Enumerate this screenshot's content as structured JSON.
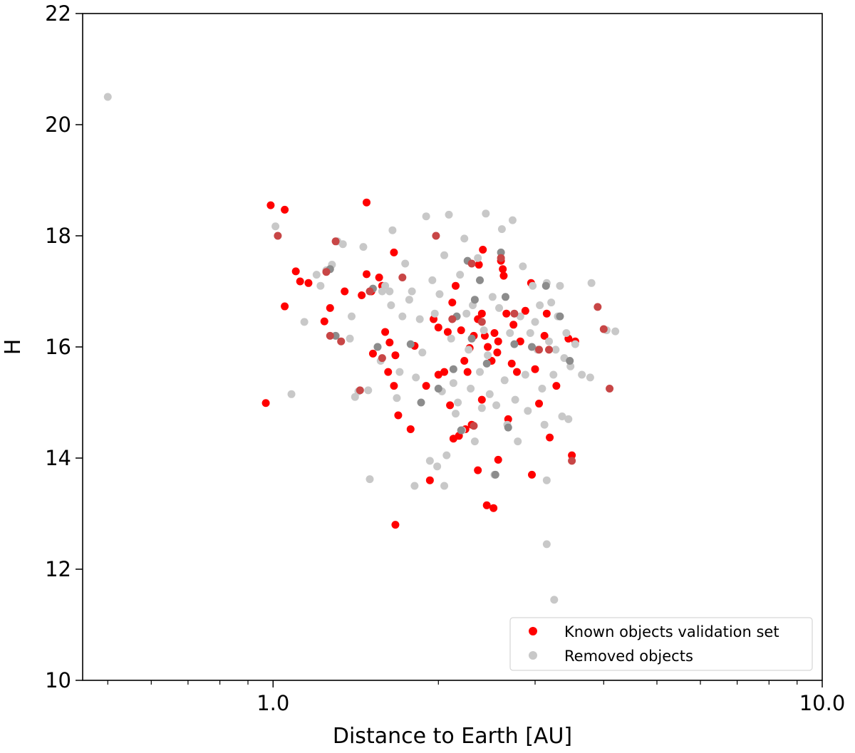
{
  "chart_data": {
    "type": "scatter",
    "title": "",
    "xlabel": "Distance to Earth [AU]",
    "ylabel": "H",
    "xscale": "log",
    "xlim": [
      0.45,
      10.0
    ],
    "ylim": [
      10,
      22
    ],
    "x_major_ticks": [
      {
        "value": 1.0,
        "label": "1.0"
      },
      {
        "value": 10.0,
        "label": "10.0"
      }
    ],
    "x_minor_ticks": [
      0.5,
      0.6,
      0.7,
      0.8,
      0.9,
      2,
      3,
      4,
      5,
      6,
      7,
      8,
      9
    ],
    "y_ticks": [
      {
        "value": 10,
        "label": "10"
      },
      {
        "value": 12,
        "label": "12"
      },
      {
        "value": 14,
        "label": "14"
      },
      {
        "value": 16,
        "label": "16"
      },
      {
        "value": 18,
        "label": "18"
      },
      {
        "value": 20,
        "label": "20"
      },
      {
        "value": 22,
        "label": "22"
      }
    ],
    "grid": false,
    "legend": {
      "placement": "lower-right",
      "entries": [
        {
          "label": "Known objects validation set",
          "color": "#ff0000"
        },
        {
          "label": "Removed objects",
          "color": "#c8c8c8"
        }
      ]
    },
    "series": [
      {
        "name": "Known objects validation set",
        "color": "#ff0000",
        "points": [
          [
            0.99,
            18.55
          ],
          [
            1.05,
            18.47
          ],
          [
            1.48,
            18.6
          ],
          [
            1.05,
            16.73
          ],
          [
            1.1,
            17.36
          ],
          [
            1.12,
            17.18
          ],
          [
            1.16,
            17.15
          ],
          [
            1.24,
            16.46
          ],
          [
            1.27,
            16.7
          ],
          [
            1.35,
            17.0
          ],
          [
            1.45,
            16.93
          ],
          [
            1.48,
            17.31
          ],
          [
            1.51,
            17.0
          ],
          [
            1.56,
            17.25
          ],
          [
            1.58,
            17.1
          ],
          [
            1.66,
            17.7
          ],
          [
            1.6,
            16.27
          ],
          [
            1.63,
            16.08
          ],
          [
            1.67,
            15.85
          ],
          [
            1.62,
            15.55
          ],
          [
            1.66,
            15.3
          ],
          [
            1.69,
            14.77
          ],
          [
            0.97,
            14.99
          ],
          [
            1.78,
            14.52
          ],
          [
            1.67,
            12.8
          ],
          [
            1.52,
            15.88
          ],
          [
            1.81,
            16.02
          ],
          [
            1.9,
            15.3
          ],
          [
            1.96,
            16.5
          ],
          [
            2.0,
            16.35
          ],
          [
            2.05,
            15.55
          ],
          [
            2.08,
            16.27
          ],
          [
            2.12,
            16.8
          ],
          [
            2.15,
            17.1
          ],
          [
            2.2,
            16.3
          ],
          [
            2.23,
            15.75
          ],
          [
            2.26,
            15.55
          ],
          [
            2.32,
            16.2
          ],
          [
            2.36,
            16.5
          ],
          [
            2.4,
            16.6
          ],
          [
            2.43,
            16.2
          ],
          [
            2.46,
            16.0
          ],
          [
            2.5,
            15.75
          ],
          [
            2.53,
            16.25
          ],
          [
            2.57,
            16.1
          ],
          [
            2.6,
            17.55
          ],
          [
            2.63,
            17.28
          ],
          [
            2.66,
            16.6
          ],
          [
            2.72,
            15.7
          ],
          [
            2.78,
            15.55
          ],
          [
            2.82,
            16.1
          ],
          [
            2.88,
            16.65
          ],
          [
            2.95,
            17.15
          ],
          [
            3.0,
            15.6
          ],
          [
            3.05,
            14.98
          ],
          [
            3.12,
            16.2
          ],
          [
            3.15,
            16.6
          ],
          [
            3.19,
            14.37
          ],
          [
            3.28,
            15.3
          ],
          [
            3.45,
            16.15
          ],
          [
            3.55,
            16.1
          ],
          [
            3.5,
            14.05
          ],
          [
            2.45,
            13.15
          ],
          [
            2.52,
            13.1
          ],
          [
            2.36,
            13.78
          ],
          [
            2.57,
            13.97
          ],
          [
            2.18,
            14.4
          ],
          [
            2.24,
            14.52
          ],
          [
            2.3,
            14.6
          ],
          [
            2.4,
            15.05
          ],
          [
            2.68,
            14.7
          ],
          [
            2.96,
            13.7
          ],
          [
            1.93,
            13.6
          ],
          [
            2.13,
            14.35
          ],
          [
            2.1,
            14.95
          ],
          [
            2.0,
            15.5
          ],
          [
            2.28,
            15.98
          ],
          [
            2.41,
            17.75
          ],
          [
            2.37,
            17.48
          ],
          [
            2.62,
            17.4
          ],
          [
            2.74,
            16.4
          ],
          [
            2.56,
            15.9
          ]
        ]
      },
      {
        "name": "Removed objects",
        "color": "#c8c8c8",
        "points": [
          [
            0.5,
            20.5
          ],
          [
            1.01,
            18.17
          ],
          [
            1.02,
            18.0
          ],
          [
            1.14,
            16.45
          ],
          [
            1.08,
            15.15
          ],
          [
            1.2,
            17.3
          ],
          [
            1.22,
            17.1
          ],
          [
            1.25,
            17.38
          ],
          [
            1.28,
            17.48
          ],
          [
            1.31,
            17.9
          ],
          [
            1.34,
            17.85
          ],
          [
            1.38,
            16.15
          ],
          [
            1.39,
            16.55
          ],
          [
            1.41,
            15.1
          ],
          [
            1.43,
            15.2
          ],
          [
            1.46,
            17.8
          ],
          [
            1.5,
            13.62
          ],
          [
            1.49,
            15.22
          ],
          [
            1.55,
            16.0
          ],
          [
            1.57,
            15.75
          ],
          [
            1.6,
            17.1
          ],
          [
            1.63,
            17.0
          ],
          [
            1.65,
            18.1
          ],
          [
            1.68,
            15.08
          ],
          [
            1.7,
            15.55
          ],
          [
            1.72,
            16.55
          ],
          [
            1.74,
            17.5
          ],
          [
            1.77,
            16.85
          ],
          [
            1.79,
            17.0
          ],
          [
            1.82,
            15.45
          ],
          [
            1.85,
            16.5
          ],
          [
            1.87,
            15.9
          ],
          [
            1.9,
            18.35
          ],
          [
            1.93,
            13.95
          ],
          [
            1.95,
            17.2
          ],
          [
            1.97,
            16.6
          ],
          [
            1.99,
            13.85
          ],
          [
            2.01,
            16.95
          ],
          [
            2.03,
            15.2
          ],
          [
            2.05,
            13.5
          ],
          [
            2.07,
            14.05
          ],
          [
            2.09,
            18.38
          ],
          [
            2.11,
            16.15
          ],
          [
            2.13,
            15.35
          ],
          [
            2.15,
            14.8
          ],
          [
            2.17,
            15.0
          ],
          [
            2.19,
            17.3
          ],
          [
            2.21,
            14.5
          ],
          [
            2.23,
            17.95
          ],
          [
            2.25,
            16.6
          ],
          [
            2.27,
            15.95
          ],
          [
            2.29,
            15.25
          ],
          [
            2.31,
            16.75
          ],
          [
            2.33,
            14.3
          ],
          [
            2.36,
            17.6
          ],
          [
            2.38,
            15.55
          ],
          [
            2.4,
            14.9
          ],
          [
            2.42,
            16.3
          ],
          [
            2.44,
            18.4
          ],
          [
            2.46,
            15.85
          ],
          [
            2.48,
            15.15
          ],
          [
            2.51,
            16.9
          ],
          [
            2.53,
            13.7
          ],
          [
            2.55,
            14.95
          ],
          [
            2.58,
            16.7
          ],
          [
            2.61,
            18.12
          ],
          [
            2.64,
            15.4
          ],
          [
            2.67,
            14.6
          ],
          [
            2.7,
            16.25
          ],
          [
            2.73,
            18.28
          ],
          [
            2.76,
            15.05
          ],
          [
            2.79,
            14.3
          ],
          [
            2.82,
            16.55
          ],
          [
            2.85,
            17.45
          ],
          [
            2.88,
            15.5
          ],
          [
            2.91,
            14.85
          ],
          [
            2.94,
            16.25
          ],
          [
            2.97,
            17.1
          ],
          [
            3.0,
            16.45
          ],
          [
            3.03,
            15.95
          ],
          [
            3.06,
            16.75
          ],
          [
            3.09,
            15.25
          ],
          [
            3.12,
            14.6
          ],
          [
            3.15,
            17.15
          ],
          [
            3.18,
            16.1
          ],
          [
            3.21,
            16.8
          ],
          [
            3.24,
            15.5
          ],
          [
            3.27,
            15.95
          ],
          [
            3.3,
            16.55
          ],
          [
            3.33,
            17.1
          ],
          [
            3.36,
            14.75
          ],
          [
            3.39,
            15.8
          ],
          [
            3.42,
            16.25
          ],
          [
            3.45,
            14.7
          ],
          [
            3.48,
            15.65
          ],
          [
            3.55,
            16.05
          ],
          [
            3.65,
            15.5
          ],
          [
            3.78,
            15.45
          ],
          [
            3.8,
            17.15
          ],
          [
            4.05,
            16.3
          ],
          [
            4.2,
            16.28
          ],
          [
            3.15,
            13.6
          ],
          [
            3.15,
            12.45
          ],
          [
            3.25,
            11.45
          ],
          [
            1.81,
            13.5
          ],
          [
            2.05,
            17.65
          ],
          [
            1.58,
            17.0
          ],
          [
            1.64,
            16.75
          ]
        ]
      },
      {
        "name": "",
        "color": "#8c8c8c",
        "points": [
          [
            1.27,
            17.4
          ],
          [
            1.3,
            16.2
          ],
          [
            1.52,
            17.05
          ],
          [
            1.55,
            16.0
          ],
          [
            1.78,
            16.05
          ],
          [
            1.86,
            15.0
          ],
          [
            2.0,
            15.25
          ],
          [
            2.13,
            15.6
          ],
          [
            2.2,
            14.5
          ],
          [
            2.26,
            17.55
          ],
          [
            2.33,
            16.85
          ],
          [
            2.45,
            15.7
          ],
          [
            2.6,
            17.7
          ],
          [
            2.75,
            16.05
          ],
          [
            2.96,
            16.0
          ],
          [
            3.14,
            17.1
          ],
          [
            3.33,
            16.55
          ],
          [
            3.47,
            15.75
          ],
          [
            2.3,
            16.15
          ],
          [
            2.16,
            16.55
          ],
          [
            2.38,
            17.2
          ],
          [
            2.68,
            14.55
          ],
          [
            2.54,
            13.7
          ],
          [
            2.65,
            16.9
          ]
        ]
      },
      {
        "name": "",
        "color": "#c84646",
        "points": [
          [
            1.02,
            18.0
          ],
          [
            1.25,
            17.35
          ],
          [
            1.3,
            17.9
          ],
          [
            1.27,
            16.2
          ],
          [
            1.33,
            16.1
          ],
          [
            1.5,
            17.0
          ],
          [
            1.58,
            15.8
          ],
          [
            1.98,
            18.0
          ],
          [
            2.12,
            16.5
          ],
          [
            2.3,
            17.5
          ],
          [
            2.4,
            16.45
          ],
          [
            2.6,
            17.6
          ],
          [
            2.75,
            16.6
          ],
          [
            3.05,
            15.95
          ],
          [
            3.18,
            15.95
          ],
          [
            3.5,
            13.95
          ],
          [
            3.9,
            16.72
          ],
          [
            4.0,
            16.32
          ],
          [
            4.1,
            15.25
          ],
          [
            2.32,
            14.58
          ],
          [
            1.72,
            17.25
          ],
          [
            1.44,
            15.22
          ]
        ]
      }
    ]
  }
}
